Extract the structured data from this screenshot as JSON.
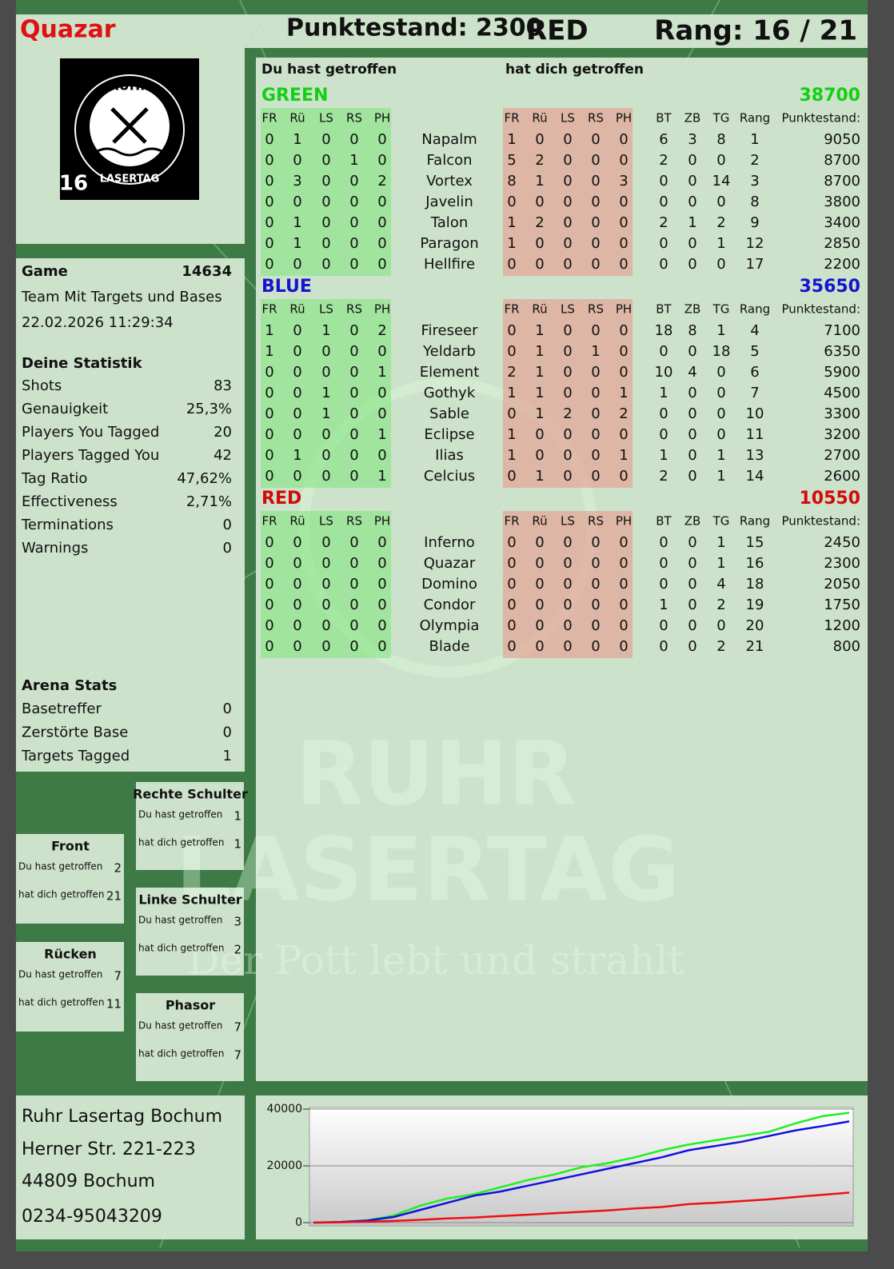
{
  "header": {
    "player": "Quazar",
    "score": "Punktestand: 2300",
    "team": "RED",
    "rank": "Rang: 16 / 21"
  },
  "logo": {
    "top": "RUHR",
    "bottom": "LASERTAG",
    "badge": "16"
  },
  "game": {
    "label": "Game",
    "id": 14634,
    "mode": "Team Mit Targets und Bases",
    "date": "22.02.2026 11:29:34"
  },
  "stats": {
    "title": "Deine Statistik",
    "rows": [
      [
        "Shots",
        83
      ],
      [
        "Genauigkeit",
        "25,3%"
      ],
      [
        "Players You Tagged",
        20
      ],
      [
        "Players Tagged You",
        42
      ],
      [
        "Tag Ratio",
        "47,62%"
      ],
      [
        "Effectiveness",
        "2,71%"
      ],
      [
        "Terminations",
        0
      ],
      [
        "Warnings",
        0
      ]
    ]
  },
  "arena": {
    "title": "Arena Stats",
    "rows": [
      [
        "Basetreffer",
        0
      ],
      [
        "Zerstörte Base",
        0
      ],
      [
        "Targets Tagged",
        1
      ]
    ]
  },
  "zones": [
    {
      "title": "Rechte Schulter",
      "rows": [
        [
          "Du hast getroffen",
          1
        ],
        [
          "hat dich getroffen",
          1
        ]
      ]
    },
    {
      "title": "Front",
      "rows": [
        [
          "Du hast getroffen",
          2
        ],
        [
          "hat dich getroffen",
          21
        ]
      ]
    },
    {
      "title": "Linke Schulter",
      "rows": [
        [
          "Du hast getroffen",
          3
        ],
        [
          "hat dich getroffen",
          2
        ]
      ]
    },
    {
      "title": "Rücken",
      "rows": [
        [
          "Du hast getroffen",
          7
        ],
        [
          "hat dich getroffen",
          11
        ]
      ]
    },
    {
      "title": "Phasor",
      "rows": [
        [
          "Du hast getroffen",
          7
        ],
        [
          "hat dich getroffen",
          7
        ]
      ]
    }
  ],
  "address": [
    "Ruhr Lasertag Bochum",
    "Herner Str. 221-223",
    "44809 Bochum",
    "0234-95043209"
  ],
  "scoreboard": {
    "hit_title": "Du hast getroffen",
    "got_title": "hat dich getroffen",
    "hit_columns": [
      "FR",
      "Rü",
      "LS",
      "RS",
      "PH"
    ],
    "stat_columns": [
      "BT",
      "ZB",
      "TG",
      "Rang",
      "Punktestand:"
    ],
    "teams": [
      {
        "name": "GREEN",
        "score": 38700,
        "color": "#12d012",
        "rows": [
          {
            "name": "Napalm",
            "hit": [
              0,
              1,
              0,
              0,
              0
            ],
            "got": [
              1,
              0,
              0,
              0,
              0
            ],
            "stats": [
              6,
              3,
              8,
              1,
              9050
            ]
          },
          {
            "name": "Falcon",
            "hit": [
              0,
              0,
              0,
              1,
              0
            ],
            "got": [
              5,
              2,
              0,
              0,
              0
            ],
            "stats": [
              2,
              0,
              0,
              2,
              8700
            ]
          },
          {
            "name": "Vortex",
            "hit": [
              0,
              3,
              0,
              0,
              2
            ],
            "got": [
              8,
              1,
              0,
              0,
              3
            ],
            "stats": [
              0,
              0,
              14,
              3,
              8700
            ]
          },
          {
            "name": "Javelin",
            "hit": [
              0,
              0,
              0,
              0,
              0
            ],
            "got": [
              0,
              0,
              0,
              0,
              0
            ],
            "stats": [
              0,
              0,
              0,
              8,
              3800
            ]
          },
          {
            "name": "Talon",
            "hit": [
              0,
              1,
              0,
              0,
              0
            ],
            "got": [
              1,
              2,
              0,
              0,
              0
            ],
            "stats": [
              2,
              1,
              2,
              9,
              3400
            ]
          },
          {
            "name": "Paragon",
            "hit": [
              0,
              1,
              0,
              0,
              0
            ],
            "got": [
              1,
              0,
              0,
              0,
              0
            ],
            "stats": [
              0,
              0,
              1,
              12,
              2850
            ]
          },
          {
            "name": "Hellfire",
            "hit": [
              0,
              0,
              0,
              0,
              0
            ],
            "got": [
              0,
              0,
              0,
              0,
              0
            ],
            "stats": [
              0,
              0,
              0,
              17,
              2200
            ]
          }
        ]
      },
      {
        "name": "BLUE",
        "score": 35650,
        "color": "#1515cc",
        "rows": [
          {
            "name": "Fireseer",
            "hit": [
              1,
              0,
              1,
              0,
              2
            ],
            "got": [
              0,
              1,
              0,
              0,
              0
            ],
            "stats": [
              18,
              8,
              1,
              4,
              7100
            ]
          },
          {
            "name": "Yeldarb",
            "hit": [
              1,
              0,
              0,
              0,
              0
            ],
            "got": [
              0,
              1,
              0,
              1,
              0
            ],
            "stats": [
              0,
              0,
              18,
              5,
              6350
            ]
          },
          {
            "name": "Element",
            "hit": [
              0,
              0,
              0,
              0,
              1
            ],
            "got": [
              2,
              1,
              0,
              0,
              0
            ],
            "stats": [
              10,
              4,
              0,
              6,
              5900
            ]
          },
          {
            "name": "Gothyk",
            "hit": [
              0,
              0,
              1,
              0,
              0
            ],
            "got": [
              1,
              1,
              0,
              0,
              1
            ],
            "stats": [
              1,
              0,
              0,
              7,
              4500
            ]
          },
          {
            "name": "Sable",
            "hit": [
              0,
              0,
              1,
              0,
              0
            ],
            "got": [
              0,
              1,
              2,
              0,
              2
            ],
            "stats": [
              0,
              0,
              0,
              10,
              3300
            ]
          },
          {
            "name": "Eclipse",
            "hit": [
              0,
              0,
              0,
              0,
              1
            ],
            "got": [
              1,
              0,
              0,
              0,
              0
            ],
            "stats": [
              0,
              0,
              0,
              11,
              3200
            ]
          },
          {
            "name": "Ilias",
            "hit": [
              0,
              1,
              0,
              0,
              0
            ],
            "got": [
              1,
              0,
              0,
              0,
              1
            ],
            "stats": [
              1,
              0,
              1,
              13,
              2700
            ]
          },
          {
            "name": "Celcius",
            "hit": [
              0,
              0,
              0,
              0,
              1
            ],
            "got": [
              0,
              1,
              0,
              0,
              0
            ],
            "stats": [
              2,
              0,
              1,
              14,
              2600
            ]
          }
        ]
      },
      {
        "name": "RED",
        "score": 10550,
        "color": "#d20a0a",
        "rows": [
          {
            "name": "Inferno",
            "hit": [
              0,
              0,
              0,
              0,
              0
            ],
            "got": [
              0,
              0,
              0,
              0,
              0
            ],
            "stats": [
              0,
              0,
              1,
              15,
              2450
            ]
          },
          {
            "name": "Quazar",
            "hit": [
              0,
              0,
              0,
              0,
              0
            ],
            "got": [
              0,
              0,
              0,
              0,
              0
            ],
            "stats": [
              0,
              0,
              1,
              16,
              2300
            ]
          },
          {
            "name": "Domino",
            "hit": [
              0,
              0,
              0,
              0,
              0
            ],
            "got": [
              0,
              0,
              0,
              0,
              0
            ],
            "stats": [
              0,
              0,
              4,
              18,
              2050
            ]
          },
          {
            "name": "Condor",
            "hit": [
              0,
              0,
              0,
              0,
              0
            ],
            "got": [
              0,
              0,
              0,
              0,
              0
            ],
            "stats": [
              1,
              0,
              2,
              19,
              1750
            ]
          },
          {
            "name": "Olympia",
            "hit": [
              0,
              0,
              0,
              0,
              0
            ],
            "got": [
              0,
              0,
              0,
              0,
              0
            ],
            "stats": [
              0,
              0,
              0,
              20,
              1200
            ]
          },
          {
            "name": "Blade",
            "hit": [
              0,
              0,
              0,
              0,
              0
            ],
            "got": [
              0,
              0,
              0,
              0,
              0
            ],
            "stats": [
              0,
              0,
              2,
              21,
              800
            ]
          }
        ]
      }
    ]
  },
  "watermark": {
    "top": "RUHR",
    "bottom": "LASERTAG",
    "slogan": "Der Pott lebt und strahlt"
  },
  "chart_data": {
    "type": "line",
    "ylim": [
      0,
      40000
    ],
    "yticks": [
      0,
      20000,
      40000
    ],
    "grid": true,
    "series": [
      {
        "color": "#22ee22",
        "values": [
          0,
          200,
          800,
          2500,
          6000,
          8500,
          10000,
          12500,
          15000,
          17000,
          19500,
          21000,
          23000,
          25500,
          27500,
          29000,
          30500,
          32000,
          35000,
          37500,
          38700
        ]
      },
      {
        "color": "#1010e0",
        "values": [
          0,
          200,
          700,
          2000,
          4500,
          7000,
          9500,
          11000,
          13000,
          15000,
          17000,
          19000,
          21000,
          23000,
          25500,
          27000,
          28500,
          30500,
          32500,
          34000,
          35650
        ]
      },
      {
        "color": "#ee1010",
        "values": [
          0,
          100,
          300,
          600,
          1000,
          1500,
          1800,
          2300,
          2800,
          3300,
          3800,
          4300,
          5000,
          5500,
          6500,
          7000,
          7600,
          8200,
          9000,
          9800,
          10550
        ]
      }
    ]
  }
}
